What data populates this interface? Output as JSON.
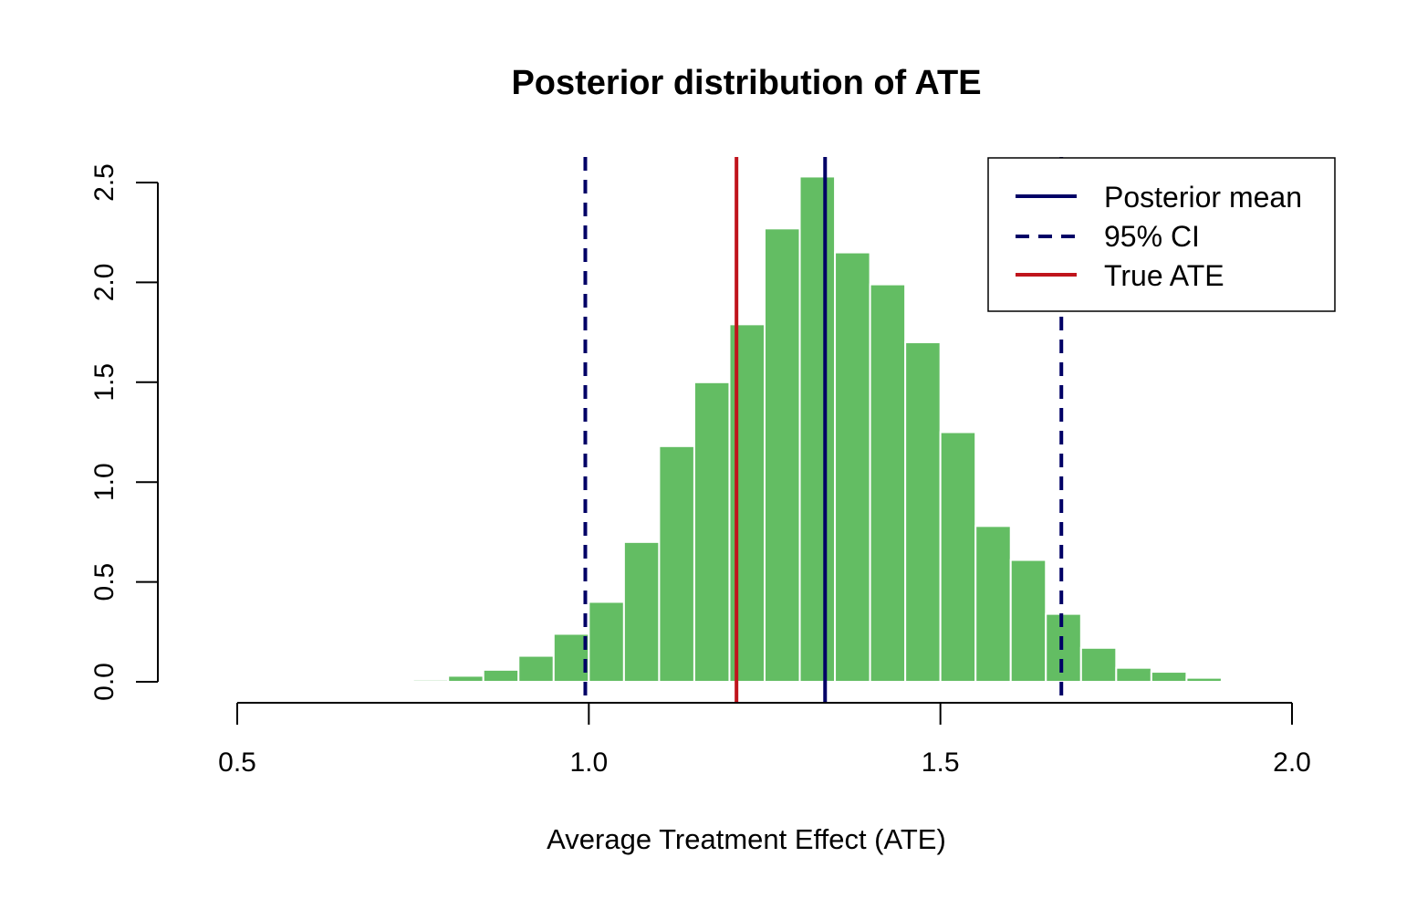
{
  "colors": {
    "bar_fill": "#63bd63",
    "bar_border": "#ffffff",
    "posterior_mean": "#000066",
    "ci": "#000066",
    "true_ate": "#c0141c",
    "axis": "#000000"
  },
  "chart_data": {
    "type": "bar",
    "title": "Posterior distribution of ATE",
    "xlabel": "Average Treatment Effect (ATE)",
    "ylabel": "",
    "xlim": [
      0.5,
      2.0
    ],
    "ylim": [
      0,
      2.5
    ],
    "x_ticks": [
      "0.5",
      "1.0",
      "1.5",
      "2.0"
    ],
    "y_ticks": [
      "0.0",
      "0.5",
      "1.0",
      "1.5",
      "2.0",
      "2.5"
    ],
    "bin_width": 0.05,
    "bins": [
      {
        "start": 0.7,
        "value": 0.005
      },
      {
        "start": 0.75,
        "value": 0.01
      },
      {
        "start": 0.8,
        "value": 0.03
      },
      {
        "start": 0.85,
        "value": 0.06
      },
      {
        "start": 0.9,
        "value": 0.13
      },
      {
        "start": 0.95,
        "value": 0.24
      },
      {
        "start": 1.0,
        "value": 0.4
      },
      {
        "start": 1.05,
        "value": 0.7
      },
      {
        "start": 1.1,
        "value": 1.18
      },
      {
        "start": 1.15,
        "value": 1.5
      },
      {
        "start": 1.2,
        "value": 1.79
      },
      {
        "start": 1.25,
        "value": 2.27
      },
      {
        "start": 1.3,
        "value": 2.53
      },
      {
        "start": 1.35,
        "value": 2.15
      },
      {
        "start": 1.4,
        "value": 1.99
      },
      {
        "start": 1.45,
        "value": 1.7
      },
      {
        "start": 1.5,
        "value": 1.25
      },
      {
        "start": 1.55,
        "value": 0.78
      },
      {
        "start": 1.6,
        "value": 0.61
      },
      {
        "start": 1.65,
        "value": 0.34
      },
      {
        "start": 1.7,
        "value": 0.17
      },
      {
        "start": 1.75,
        "value": 0.07
      },
      {
        "start": 1.8,
        "value": 0.05
      },
      {
        "start": 1.85,
        "value": 0.02
      },
      {
        "start": 1.9,
        "value": 0.005
      }
    ],
    "reference_lines": {
      "posterior_mean": 1.336,
      "ci_lower": 0.995,
      "ci_upper": 1.672,
      "true_ate": 1.21
    },
    "legend": {
      "placement": "top-right",
      "entries": [
        {
          "label": "Posterior mean",
          "style": "solid",
          "color": "#000066"
        },
        {
          "label": "95% CI",
          "style": "dashed",
          "color": "#000066"
        },
        {
          "label": "True ATE",
          "style": "solid",
          "color": "#c0141c"
        }
      ]
    }
  }
}
